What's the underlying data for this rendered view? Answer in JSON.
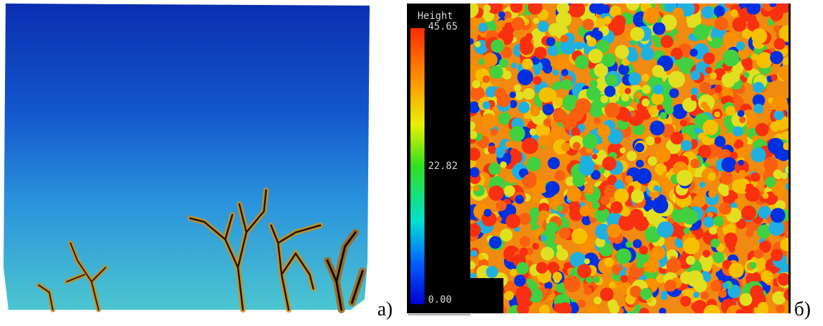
{
  "panels": [
    {
      "label": "а)"
    },
    {
      "label": "б)",
      "colorbar": {
        "title": "Height",
        "ticks": [
          "45.65",
          "22.82",
          "0.00"
        ]
      }
    }
  ]
}
